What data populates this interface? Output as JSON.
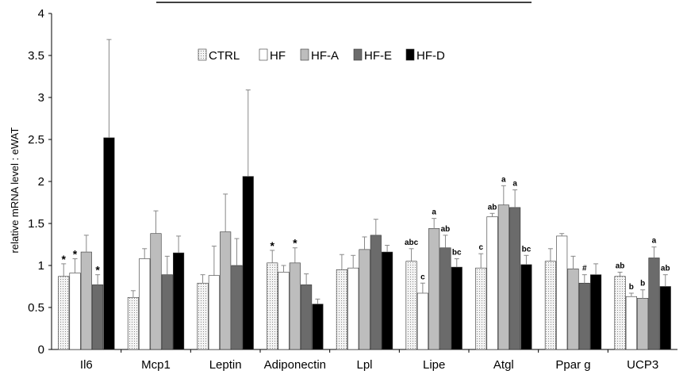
{
  "chart_data": {
    "type": "bar",
    "title": "",
    "xlabel": "",
    "ylabel": "relative mRNA level : eWAT",
    "ylim": [
      0,
      4
    ],
    "yticks": [
      "0",
      "0.5",
      "1",
      "1.5",
      "2",
      "2.5",
      "3",
      "3.5",
      "4"
    ],
    "grid": false,
    "legend_position": "top-center",
    "categories": [
      "Il6",
      "Mcp1",
      "Leptin",
      "Adiponectin",
      "Lpl",
      "Lipe",
      "Atgl",
      "Ppar g",
      "UCP3"
    ],
    "series": [
      {
        "name": "CTRL",
        "color": "#f3f3f3",
        "pattern": "dotted",
        "values": [
          0.87,
          0.62,
          0.79,
          1.03,
          0.95,
          1.05,
          0.97,
          1.05,
          0.87
        ],
        "errors": [
          0.15,
          0.08,
          0.1,
          0.15,
          0.18,
          0.15,
          0.17,
          0.15,
          0.05
        ]
      },
      {
        "name": "HF",
        "color": "#ffffff",
        "values": [
          0.91,
          1.08,
          0.88,
          0.92,
          0.97,
          0.67,
          1.58,
          1.35,
          0.63
        ],
        "errors": [
          0.17,
          0.12,
          0.35,
          0.08,
          0.15,
          0.12,
          0.04,
          0.03,
          0.04
        ]
      },
      {
        "name": "HF-A",
        "color": "#bdbdbd",
        "values": [
          1.16,
          1.38,
          1.4,
          1.03,
          1.19,
          1.44,
          1.72,
          0.96,
          0.61
        ],
        "errors": [
          0.2,
          0.27,
          0.45,
          0.18,
          0.15,
          0.12,
          0.23,
          0.15,
          0.1
        ]
      },
      {
        "name": "HF-E",
        "color": "#6b6b6b",
        "values": [
          0.77,
          0.89,
          1.0,
          0.77,
          1.36,
          1.21,
          1.69,
          0.79,
          1.09
        ],
        "errors": [
          0.12,
          0.22,
          0.32,
          0.13,
          0.19,
          0.15,
          0.21,
          0.1,
          0.13
        ]
      },
      {
        "name": "HF-D",
        "color": "#000000",
        "values": [
          2.52,
          1.15,
          2.06,
          0.54,
          1.16,
          0.98,
          1.01,
          0.89,
          0.75
        ],
        "errors": [
          1.17,
          0.2,
          1.03,
          0.06,
          0.08,
          0.1,
          0.11,
          0.13,
          0.14
        ]
      }
    ],
    "annotations": [
      {
        "category": "Il6",
        "series": "CTRL",
        "text": "*"
      },
      {
        "category": "Il6",
        "series": "HF",
        "text": "*"
      },
      {
        "category": "Il6",
        "series": "HF-E",
        "text": "*"
      },
      {
        "category": "Adiponectin",
        "series": "CTRL",
        "text": "*"
      },
      {
        "category": "Adiponectin",
        "series": "HF-A",
        "text": "*"
      },
      {
        "category": "Lipe",
        "series": "CTRL",
        "text": "abc"
      },
      {
        "category": "Lipe",
        "series": "HF",
        "text": "c"
      },
      {
        "category": "Lipe",
        "series": "HF-A",
        "text": "a"
      },
      {
        "category": "Lipe",
        "series": "HF-E",
        "text": "ab"
      },
      {
        "category": "Lipe",
        "series": "HF-D",
        "text": "bc"
      },
      {
        "category": "Atgl",
        "series": "CTRL",
        "text": "c"
      },
      {
        "category": "Atgl",
        "series": "HF",
        "text": "ab"
      },
      {
        "category": "Atgl",
        "series": "HF-A",
        "text": "a"
      },
      {
        "category": "Atgl",
        "series": "HF-E",
        "text": "a"
      },
      {
        "category": "Atgl",
        "series": "HF-D",
        "text": "bc"
      },
      {
        "category": "Ppar g",
        "series": "HF-E",
        "text": "#"
      },
      {
        "category": "UCP3",
        "series": "CTRL",
        "text": "ab"
      },
      {
        "category": "UCP3",
        "series": "HF",
        "text": "b"
      },
      {
        "category": "UCP3",
        "series": "HF-A",
        "text": "b"
      },
      {
        "category": "UCP3",
        "series": "HF-E",
        "text": "a"
      },
      {
        "category": "UCP3",
        "series": "HF-D",
        "text": "ab"
      }
    ]
  }
}
